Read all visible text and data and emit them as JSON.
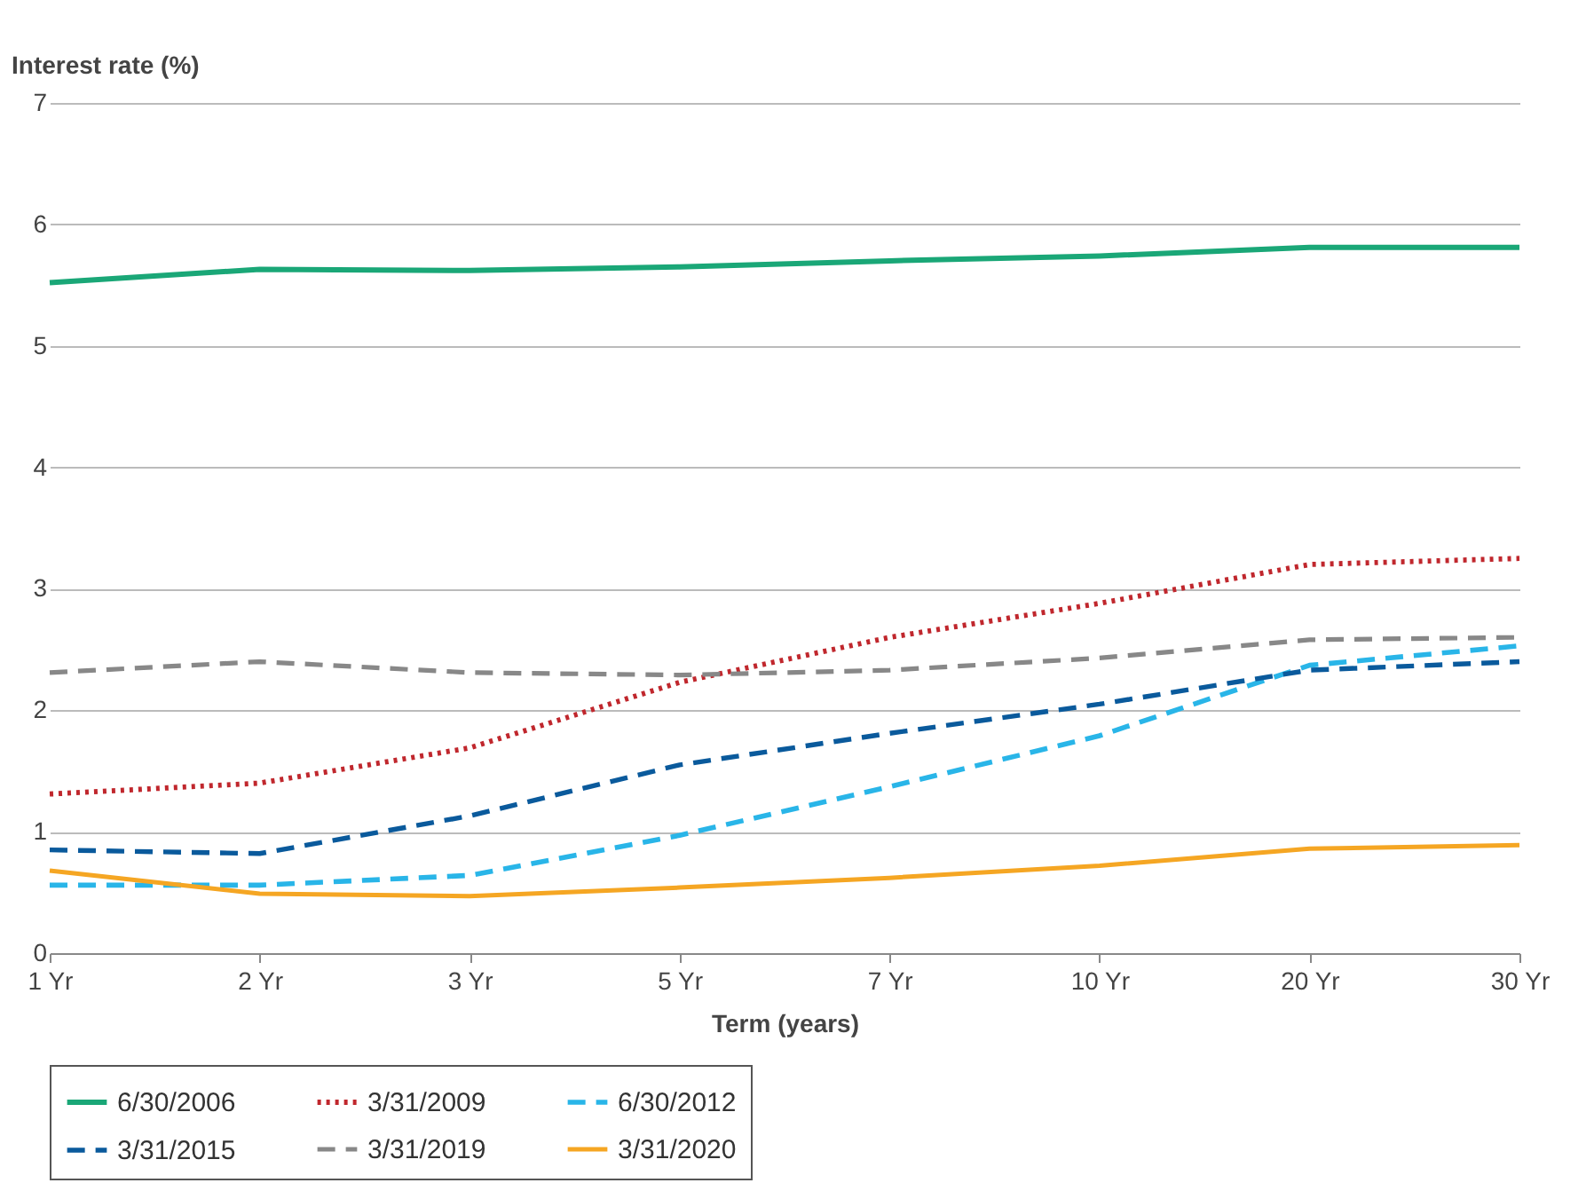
{
  "chart_data": {
    "type": "line",
    "ylabel": "Interest rate (%)",
    "xlabel": "Term (years)",
    "categories": [
      "1 Yr",
      "2 Yr",
      "3 Yr",
      "5 Yr",
      "7 Yr",
      "10 Yr",
      "20 Yr",
      "30 Yr"
    ],
    "ylim": [
      0,
      7
    ],
    "yticks": [
      0,
      1,
      2,
      3,
      4,
      5,
      6,
      7
    ],
    "grid": "y",
    "legend": "bottom",
    "marker": "none",
    "series": [
      {
        "name": "6/30/2006",
        "color": "#1aa777",
        "line_style": "solid",
        "values": [
          5.52,
          5.63,
          5.62,
          5.65,
          5.7,
          5.74,
          5.81,
          5.81
        ]
      },
      {
        "name": "3/31/2009",
        "color": "#c0272d",
        "line_style": "dotted",
        "values": [
          1.31,
          1.4,
          1.69,
          2.23,
          2.6,
          2.88,
          3.2,
          3.25
        ]
      },
      {
        "name": "6/30/2012",
        "color": "#29b5e8",
        "line_style": "dashed",
        "values": [
          0.56,
          0.56,
          0.64,
          0.97,
          1.37,
          1.79,
          2.37,
          2.53
        ]
      },
      {
        "name": "3/31/2015",
        "color": "#0a5a9c",
        "line_style": "dashed",
        "values": [
          0.85,
          0.82,
          1.13,
          1.55,
          1.81,
          2.05,
          2.33,
          2.4
        ]
      },
      {
        "name": "3/31/2019",
        "color": "#888888",
        "line_style": "dashed",
        "values": [
          2.31,
          2.4,
          2.31,
          2.29,
          2.33,
          2.43,
          2.58,
          2.6
        ]
      },
      {
        "name": "3/31/2020",
        "color": "#f5a623",
        "line_style": "solid",
        "values": [
          0.68,
          0.49,
          0.47,
          0.54,
          0.62,
          0.72,
          0.86,
          0.89
        ]
      }
    ]
  }
}
